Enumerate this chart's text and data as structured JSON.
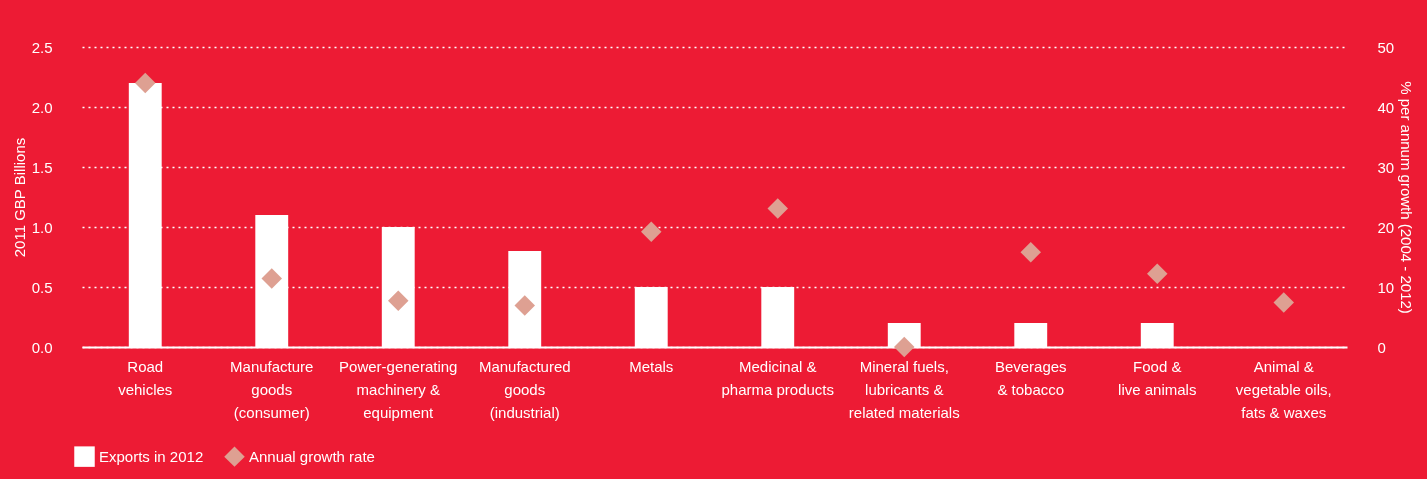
{
  "chart_data": {
    "type": "bar",
    "ylabel": "2011 GBP Billions",
    "y2label": "% per annum growth (2004 - 2012)",
    "categories": [
      "Road\nvehicles",
      "Manufacture\ngoods\n(consumer)",
      "Power-generating\nmachinery &\nequipment",
      "Manufactured\ngoods\n(industrial)",
      "Metals",
      "Medicinal &\npharma products",
      "Mineral fuels,\nlubricants &\nrelated materials",
      "Beverages\n& tobacco",
      "Food &\nlive animals",
      "Animal &\nvegetable oils,\nfats & waxes"
    ],
    "series": [
      {
        "name": "Exports in 2012",
        "color": "#ffffff",
        "values": [
          2.2,
          1.1,
          1.0,
          0.8,
          0.5,
          0.5,
          0.2,
          0.2,
          0.2,
          null
        ]
      },
      {
        "name": "Annual growth rate",
        "type": "scatter",
        "axis": "y2",
        "color": "#dea092",
        "values": [
          44,
          11.4,
          7.7,
          6.9,
          19.2,
          23.1,
          0,
          15.8,
          12.2,
          7.4
        ]
      }
    ],
    "ylim": [
      0,
      2.5
    ],
    "yticks": [
      {
        "value": 0,
        "label": "0.0"
      },
      {
        "value": 0.5,
        "label": "0.5"
      },
      {
        "value": 1,
        "label": "1.0"
      },
      {
        "value": 1.5,
        "label": "1.5"
      },
      {
        "value": 2,
        "label": "2.0"
      },
      {
        "value": 2.5,
        "label": "2.5"
      }
    ],
    "y2lim": [
      0,
      50
    ],
    "y2ticks": [
      0,
      10,
      20,
      30,
      40,
      50
    ],
    "grid": "y",
    "legend": "bottom left",
    "marker": "diamond"
  }
}
